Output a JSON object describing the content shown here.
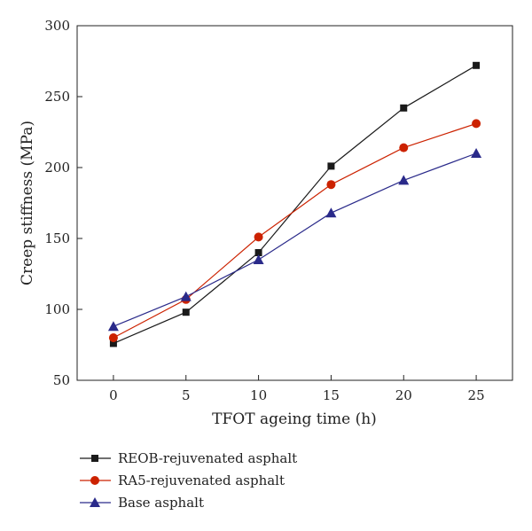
{
  "chart_data": {
    "type": "line",
    "title": "",
    "xlabel": "TFOT ageing time (h)",
    "ylabel": "Creep stiffness (MPa)",
    "x": [
      0,
      5,
      10,
      15,
      20,
      25
    ],
    "xlim": [
      -2.5,
      27.5
    ],
    "ylim": [
      50,
      300
    ],
    "xticks": [
      0,
      5,
      10,
      15,
      20,
      25
    ],
    "yticks": [
      50,
      100,
      150,
      200,
      250,
      300
    ],
    "grid": false,
    "legend_position": "bottom",
    "series": [
      {
        "name": "REOB-rejuvenated asphalt",
        "color": "#1a1a1a",
        "marker": "square",
        "values": [
          76,
          98,
          140,
          201,
          242,
          272
        ]
      },
      {
        "name": "RA5-rejuvenated asphalt",
        "color": "#cc2200",
        "marker": "circle",
        "values": [
          80,
          107,
          151,
          188,
          214,
          231
        ]
      },
      {
        "name": "Base asphalt",
        "color": "#2a2a8a",
        "marker": "triangle",
        "values": [
          88,
          109,
          135,
          168,
          191,
          210
        ]
      }
    ]
  }
}
